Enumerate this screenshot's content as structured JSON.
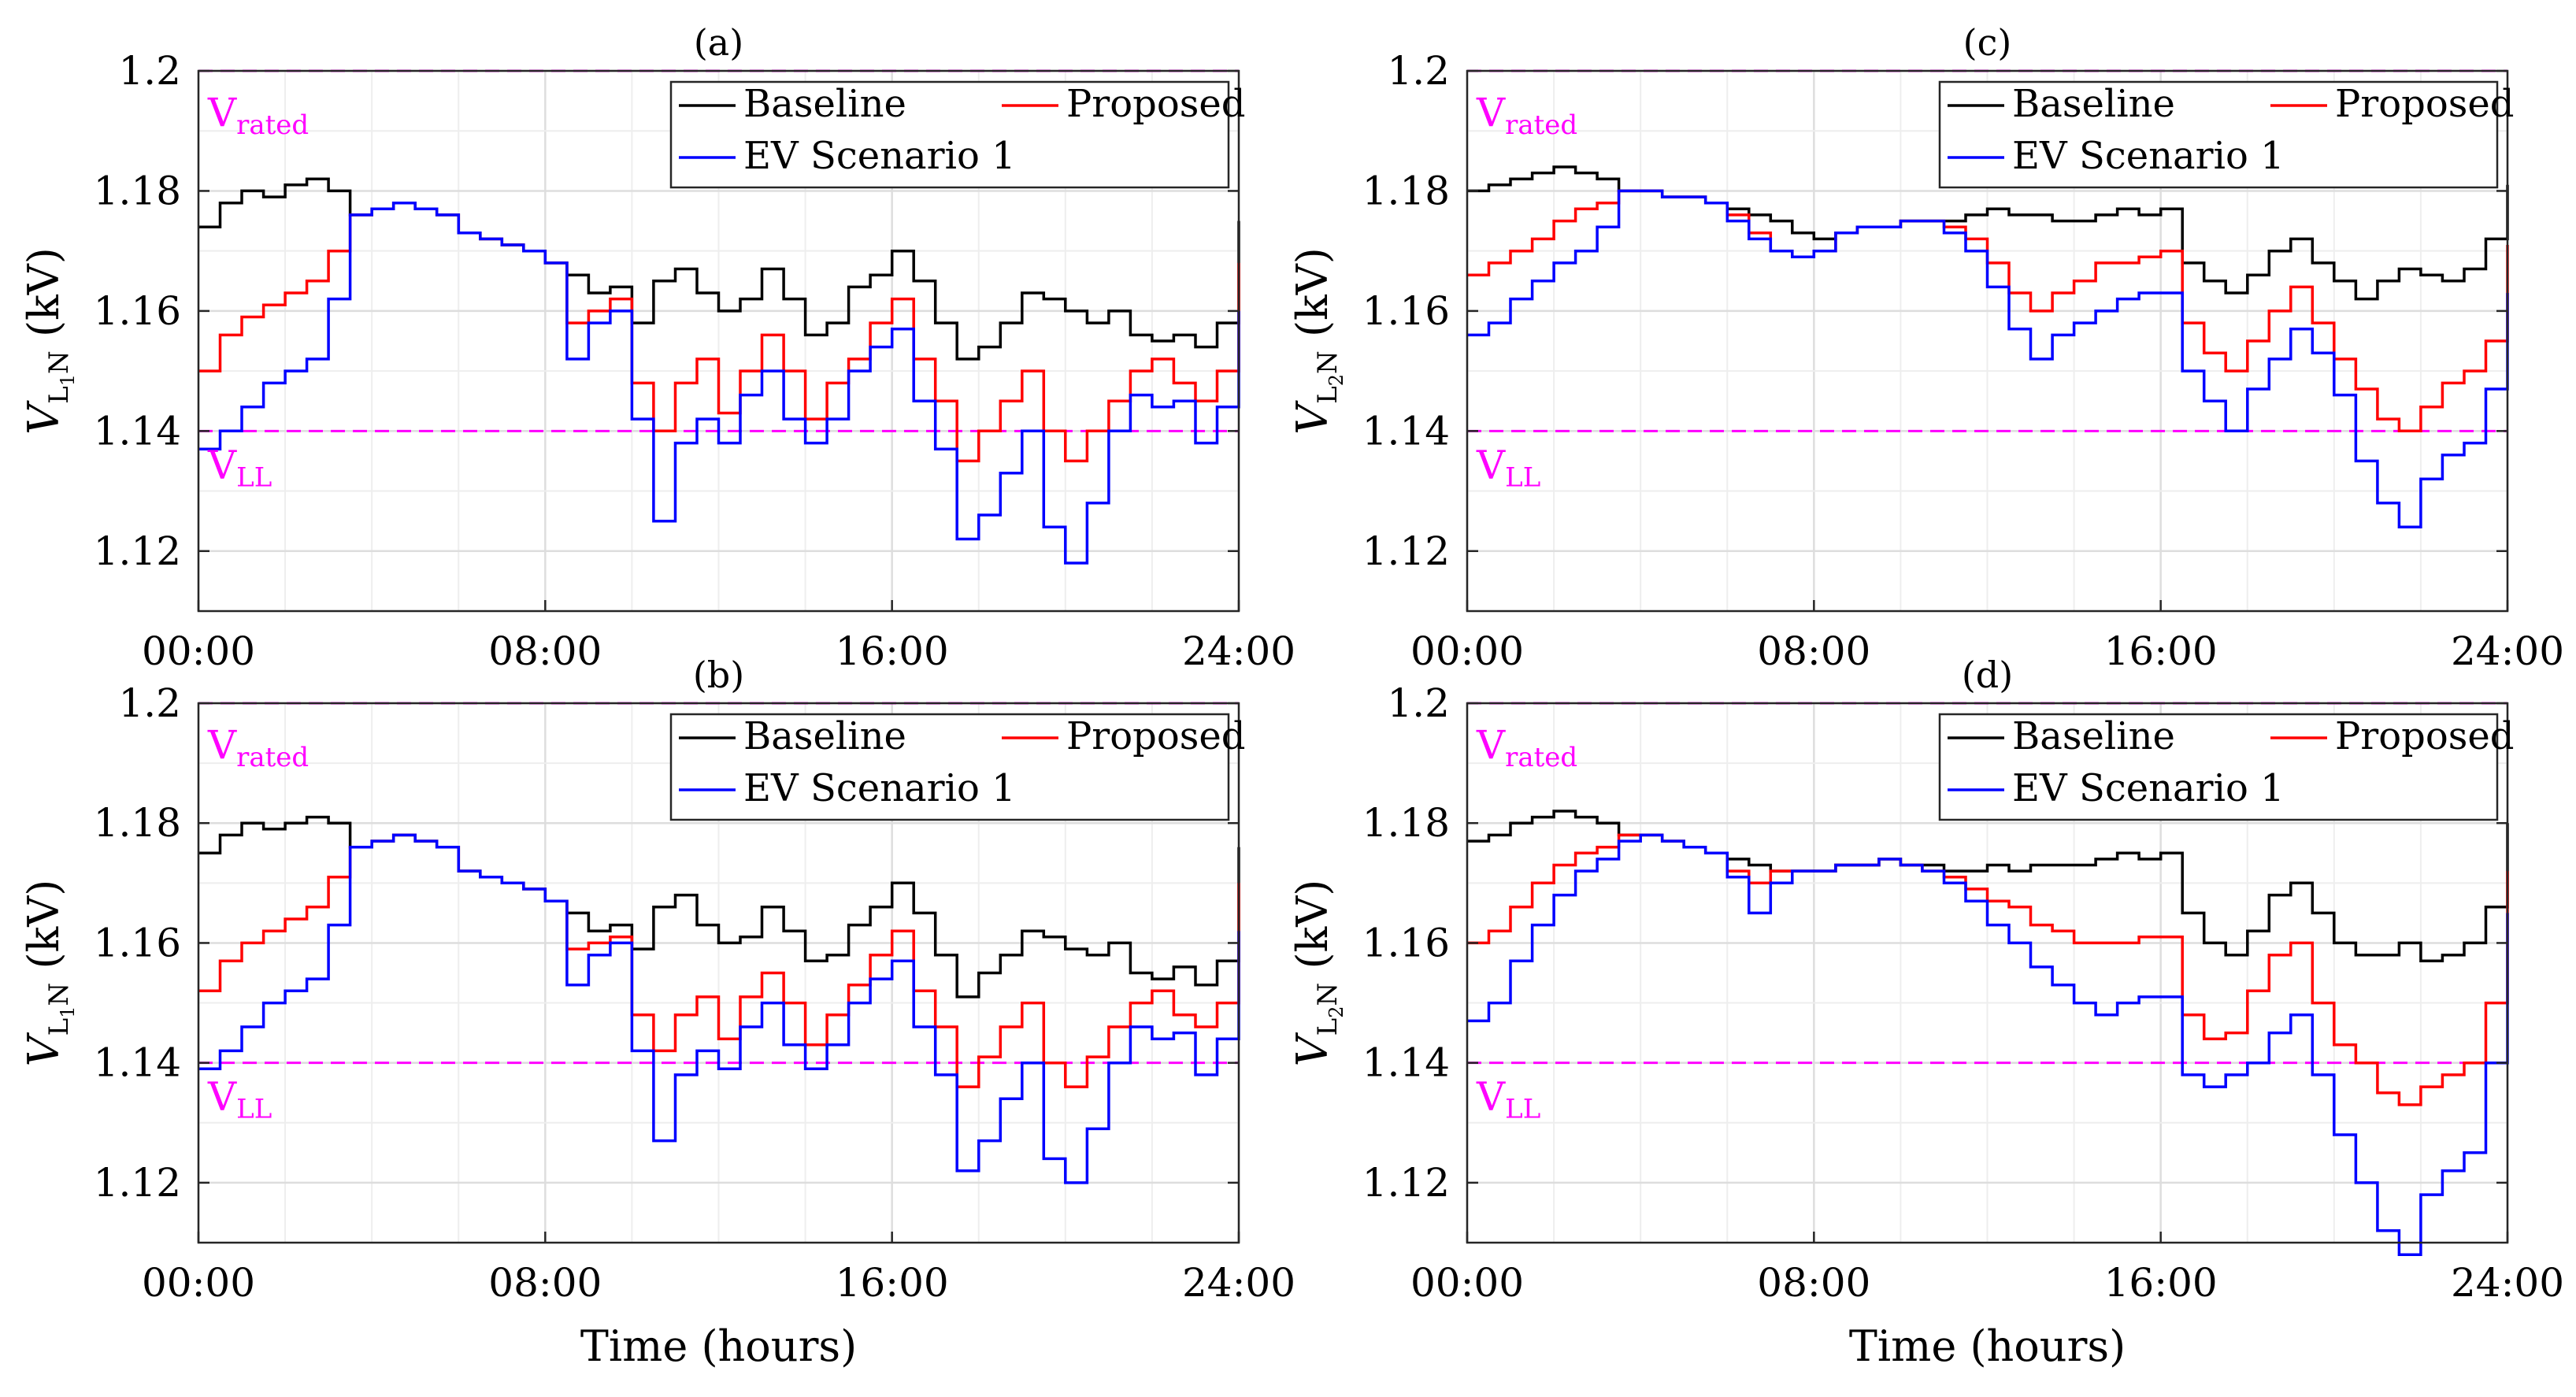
{
  "figure": {
    "xlabel": "Time (hours)",
    "x_ticks": [
      "00:00",
      "08:00",
      "16:00",
      "24:00"
    ],
    "y_ticks": [
      "1.12",
      "1.14",
      "1.16",
      "1.18",
      "1.2"
    ],
    "ref_lines": {
      "rated_label": "V",
      "rated_sub": "rated",
      "rated_value": 1.2,
      "ll_label": "V",
      "ll_sub": "LL",
      "ll_value": 1.14
    },
    "colors": {
      "Baseline": "#000000",
      "Proposed": "#ff0000",
      "EV Scenario 1": "#0000ff",
      "ref": "#ff00ff"
    }
  },
  "chart_data": [
    {
      "id": "a",
      "title": "(a)",
      "type": "line",
      "ylabel_main": "V",
      "ylabel_sub": "L",
      "ylabel_subsub": "1",
      "ylabel_tail": "N",
      "ylabel_unit": " (kV)",
      "xlim": [
        0,
        24
      ],
      "ylim": [
        1.11,
        1.2
      ],
      "grid": true,
      "legend": "top-right",
      "x": [
        0,
        0.5,
        1,
        1.5,
        2,
        2.5,
        3,
        3.5,
        4,
        4.5,
        5,
        5.5,
        6,
        6.5,
        7,
        7.5,
        8,
        8.5,
        9,
        9.5,
        10,
        10.5,
        11,
        11.5,
        12,
        12.5,
        13,
        13.5,
        14,
        14.5,
        15,
        15.5,
        16,
        16.5,
        17,
        17.5,
        18,
        18.5,
        19,
        19.5,
        20,
        20.5,
        21,
        21.5,
        22,
        22.5,
        23,
        23.5,
        24
      ],
      "series": [
        {
          "name": "Baseline",
          "values": [
            1.174,
            1.178,
            1.18,
            1.179,
            1.181,
            1.182,
            1.18,
            1.176,
            1.177,
            1.178,
            1.177,
            1.176,
            1.173,
            1.172,
            1.171,
            1.17,
            1.168,
            1.166,
            1.163,
            1.164,
            1.158,
            1.165,
            1.167,
            1.163,
            1.16,
            1.162,
            1.167,
            1.162,
            1.156,
            1.158,
            1.164,
            1.166,
            1.17,
            1.165,
            1.158,
            1.152,
            1.154,
            1.158,
            1.163,
            1.162,
            1.16,
            1.158,
            1.16,
            1.156,
            1.155,
            1.156,
            1.154,
            1.158,
            1.175
          ]
        },
        {
          "name": "Proposed",
          "values": [
            1.15,
            1.156,
            1.159,
            1.161,
            1.163,
            1.165,
            1.17,
            1.176,
            1.177,
            1.178,
            1.177,
            1.176,
            1.173,
            1.172,
            1.171,
            1.17,
            1.168,
            1.158,
            1.16,
            1.162,
            1.148,
            1.14,
            1.148,
            1.152,
            1.143,
            1.15,
            1.156,
            1.15,
            1.142,
            1.148,
            1.152,
            1.158,
            1.162,
            1.152,
            1.145,
            1.135,
            1.14,
            1.145,
            1.15,
            1.14,
            1.135,
            1.14,
            1.145,
            1.15,
            1.152,
            1.148,
            1.145,
            1.15,
            1.168
          ]
        },
        {
          "name": "EV Scenario 1",
          "values": [
            1.137,
            1.14,
            1.144,
            1.148,
            1.15,
            1.152,
            1.162,
            1.176,
            1.177,
            1.178,
            1.177,
            1.176,
            1.173,
            1.172,
            1.171,
            1.17,
            1.168,
            1.152,
            1.158,
            1.16,
            1.142,
            1.125,
            1.138,
            1.142,
            1.138,
            1.146,
            1.15,
            1.142,
            1.138,
            1.142,
            1.15,
            1.154,
            1.157,
            1.145,
            1.137,
            1.122,
            1.126,
            1.133,
            1.14,
            1.124,
            1.118,
            1.128,
            1.14,
            1.146,
            1.144,
            1.145,
            1.138,
            1.144,
            1.16
          ]
        }
      ]
    },
    {
      "id": "b",
      "title": "(b)",
      "type": "line",
      "ylabel_main": "V",
      "ylabel_sub": "L",
      "ylabel_subsub": "1",
      "ylabel_tail": "N",
      "ylabel_unit": " (kV)",
      "xlim": [
        0,
        24
      ],
      "ylim": [
        1.11,
        1.2
      ],
      "grid": true,
      "legend": "top-right",
      "x": [
        0,
        0.5,
        1,
        1.5,
        2,
        2.5,
        3,
        3.5,
        4,
        4.5,
        5,
        5.5,
        6,
        6.5,
        7,
        7.5,
        8,
        8.5,
        9,
        9.5,
        10,
        10.5,
        11,
        11.5,
        12,
        12.5,
        13,
        13.5,
        14,
        14.5,
        15,
        15.5,
        16,
        16.5,
        17,
        17.5,
        18,
        18.5,
        19,
        19.5,
        20,
        20.5,
        21,
        21.5,
        22,
        22.5,
        23,
        23.5,
        24
      ],
      "series": [
        {
          "name": "Baseline",
          "values": [
            1.175,
            1.178,
            1.18,
            1.179,
            1.18,
            1.181,
            1.18,
            1.176,
            1.177,
            1.178,
            1.177,
            1.176,
            1.172,
            1.171,
            1.17,
            1.169,
            1.167,
            1.165,
            1.162,
            1.163,
            1.159,
            1.166,
            1.168,
            1.163,
            1.16,
            1.161,
            1.166,
            1.162,
            1.157,
            1.158,
            1.163,
            1.166,
            1.17,
            1.165,
            1.158,
            1.151,
            1.155,
            1.158,
            1.162,
            1.161,
            1.159,
            1.158,
            1.16,
            1.155,
            1.154,
            1.156,
            1.153,
            1.157,
            1.176
          ]
        },
        {
          "name": "Proposed",
          "values": [
            1.152,
            1.157,
            1.16,
            1.162,
            1.164,
            1.166,
            1.171,
            1.176,
            1.177,
            1.178,
            1.177,
            1.176,
            1.172,
            1.171,
            1.17,
            1.169,
            1.167,
            1.159,
            1.16,
            1.161,
            1.148,
            1.142,
            1.148,
            1.151,
            1.144,
            1.151,
            1.155,
            1.15,
            1.143,
            1.148,
            1.153,
            1.158,
            1.162,
            1.152,
            1.146,
            1.136,
            1.141,
            1.146,
            1.15,
            1.14,
            1.136,
            1.141,
            1.146,
            1.15,
            1.152,
            1.148,
            1.146,
            1.15,
            1.17
          ]
        },
        {
          "name": "EV Scenario 1",
          "values": [
            1.139,
            1.142,
            1.146,
            1.15,
            1.152,
            1.154,
            1.163,
            1.176,
            1.177,
            1.178,
            1.177,
            1.176,
            1.172,
            1.171,
            1.17,
            1.169,
            1.167,
            1.153,
            1.158,
            1.16,
            1.142,
            1.127,
            1.138,
            1.142,
            1.139,
            1.146,
            1.15,
            1.143,
            1.139,
            1.143,
            1.15,
            1.154,
            1.157,
            1.146,
            1.138,
            1.122,
            1.127,
            1.134,
            1.14,
            1.124,
            1.12,
            1.129,
            1.14,
            1.146,
            1.144,
            1.145,
            1.138,
            1.144,
            1.162
          ]
        }
      ]
    },
    {
      "id": "c",
      "title": "(c)",
      "type": "line",
      "ylabel_main": "V",
      "ylabel_sub": "L",
      "ylabel_subsub": "2",
      "ylabel_tail": "N",
      "ylabel_unit": " (kV)",
      "xlim": [
        0,
        24
      ],
      "ylim": [
        1.11,
        1.2
      ],
      "grid": true,
      "legend": "top-right",
      "x": [
        0,
        0.5,
        1,
        1.5,
        2,
        2.5,
        3,
        3.5,
        4,
        4.5,
        5,
        5.5,
        6,
        6.5,
        7,
        7.5,
        8,
        8.5,
        9,
        9.5,
        10,
        10.5,
        11,
        11.5,
        12,
        12.5,
        13,
        13.5,
        14,
        14.5,
        15,
        15.5,
        16,
        16.5,
        17,
        17.5,
        18,
        18.5,
        19,
        19.5,
        20,
        20.5,
        21,
        21.5,
        22,
        22.5,
        23,
        23.5,
        24
      ],
      "series": [
        {
          "name": "Baseline",
          "values": [
            1.18,
            1.181,
            1.182,
            1.183,
            1.184,
            1.183,
            1.182,
            1.18,
            1.18,
            1.179,
            1.179,
            1.178,
            1.177,
            1.176,
            1.175,
            1.173,
            1.172,
            1.173,
            1.174,
            1.174,
            1.175,
            1.175,
            1.175,
            1.176,
            1.177,
            1.176,
            1.176,
            1.175,
            1.175,
            1.176,
            1.177,
            1.176,
            1.177,
            1.168,
            1.165,
            1.163,
            1.166,
            1.17,
            1.172,
            1.168,
            1.165,
            1.162,
            1.165,
            1.167,
            1.166,
            1.165,
            1.167,
            1.172,
            1.181
          ]
        },
        {
          "name": "Proposed",
          "values": [
            1.166,
            1.168,
            1.17,
            1.172,
            1.175,
            1.177,
            1.178,
            1.18,
            1.18,
            1.179,
            1.179,
            1.178,
            1.176,
            1.173,
            1.17,
            1.169,
            1.17,
            1.173,
            1.174,
            1.174,
            1.175,
            1.175,
            1.174,
            1.172,
            1.168,
            1.163,
            1.16,
            1.163,
            1.165,
            1.168,
            1.168,
            1.169,
            1.17,
            1.158,
            1.153,
            1.15,
            1.155,
            1.16,
            1.164,
            1.158,
            1.152,
            1.147,
            1.142,
            1.14,
            1.144,
            1.148,
            1.15,
            1.155,
            1.171
          ]
        },
        {
          "name": "EV Scenario 1",
          "values": [
            1.156,
            1.158,
            1.162,
            1.165,
            1.168,
            1.17,
            1.174,
            1.18,
            1.18,
            1.179,
            1.179,
            1.178,
            1.175,
            1.172,
            1.17,
            1.169,
            1.17,
            1.173,
            1.174,
            1.174,
            1.175,
            1.175,
            1.173,
            1.17,
            1.164,
            1.157,
            1.152,
            1.156,
            1.158,
            1.16,
            1.162,
            1.163,
            1.163,
            1.15,
            1.145,
            1.14,
            1.147,
            1.152,
            1.157,
            1.153,
            1.146,
            1.135,
            1.128,
            1.124,
            1.132,
            1.136,
            1.138,
            1.147,
            1.163
          ]
        }
      ]
    },
    {
      "id": "d",
      "title": "(d)",
      "type": "line",
      "ylabel_main": "V",
      "ylabel_sub": "L",
      "ylabel_subsub": "2",
      "ylabel_tail": "N",
      "ylabel_unit": " (kV)",
      "xlim": [
        0,
        24
      ],
      "ylim": [
        1.11,
        1.2
      ],
      "grid": true,
      "legend": "top-right",
      "x": [
        0,
        0.5,
        1,
        1.5,
        2,
        2.5,
        3,
        3.5,
        4,
        4.5,
        5,
        5.5,
        6,
        6.5,
        7,
        7.5,
        8,
        8.5,
        9,
        9.5,
        10,
        10.5,
        11,
        11.5,
        12,
        12.5,
        13,
        13.5,
        14,
        14.5,
        15,
        15.5,
        16,
        16.5,
        17,
        17.5,
        18,
        18.5,
        19,
        19.5,
        20,
        20.5,
        21,
        21.5,
        22,
        22.5,
        23,
        23.5,
        24
      ],
      "series": [
        {
          "name": "Baseline",
          "values": [
            1.177,
            1.178,
            1.18,
            1.181,
            1.182,
            1.181,
            1.18,
            1.178,
            1.178,
            1.177,
            1.176,
            1.175,
            1.174,
            1.173,
            1.172,
            1.172,
            1.172,
            1.173,
            1.173,
            1.174,
            1.173,
            1.173,
            1.172,
            1.172,
            1.173,
            1.172,
            1.173,
            1.173,
            1.173,
            1.174,
            1.175,
            1.174,
            1.175,
            1.165,
            1.16,
            1.158,
            1.162,
            1.168,
            1.17,
            1.165,
            1.16,
            1.158,
            1.158,
            1.16,
            1.157,
            1.158,
            1.16,
            1.166,
            1.18
          ]
        },
        {
          "name": "Proposed",
          "values": [
            1.16,
            1.162,
            1.166,
            1.17,
            1.173,
            1.175,
            1.176,
            1.178,
            1.178,
            1.177,
            1.176,
            1.175,
            1.172,
            1.17,
            1.172,
            1.172,
            1.172,
            1.173,
            1.173,
            1.174,
            1.173,
            1.172,
            1.171,
            1.169,
            1.167,
            1.166,
            1.163,
            1.162,
            1.16,
            1.16,
            1.16,
            1.161,
            1.161,
            1.148,
            1.144,
            1.145,
            1.152,
            1.158,
            1.16,
            1.15,
            1.143,
            1.14,
            1.135,
            1.133,
            1.136,
            1.138,
            1.14,
            1.15,
            1.172
          ]
        },
        {
          "name": "EV Scenario 1",
          "values": [
            1.147,
            1.15,
            1.157,
            1.163,
            1.168,
            1.172,
            1.174,
            1.177,
            1.178,
            1.177,
            1.176,
            1.175,
            1.171,
            1.165,
            1.17,
            1.172,
            1.172,
            1.173,
            1.173,
            1.174,
            1.173,
            1.172,
            1.17,
            1.167,
            1.163,
            1.16,
            1.156,
            1.153,
            1.15,
            1.148,
            1.15,
            1.151,
            1.151,
            1.138,
            1.136,
            1.138,
            1.14,
            1.145,
            1.148,
            1.138,
            1.128,
            1.12,
            1.112,
            1.108,
            1.118,
            1.122,
            1.125,
            1.14,
            1.165
          ]
        }
      ]
    }
  ]
}
